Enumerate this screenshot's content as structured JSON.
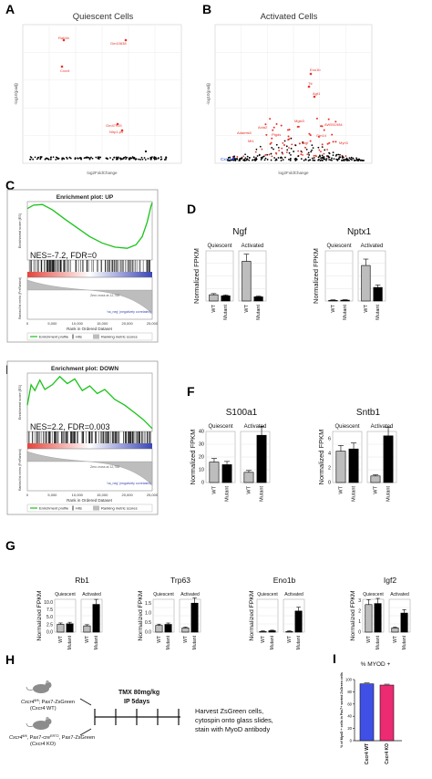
{
  "panel_letters": [
    "A",
    "B",
    "C",
    "D",
    "E",
    "F",
    "G",
    "H",
    "I"
  ],
  "colors": {
    "red": "#e8332a",
    "blue": "#1f4fd8",
    "green": "#19c319",
    "wt_fill": "#bdbdbd",
    "mut_fill": "#000000",
    "gsea_red": "#e3443b",
    "gsea_blue": "#3a46b5",
    "bar_blue": "#4050e6",
    "bar_pink": "#ec2b73"
  },
  "common": {
    "quiescent": "Quiescent",
    "activated": "Activated",
    "wt": "WT",
    "mutant": "Mutant",
    "ylabel": "Normalized FPKM",
    "legend_profile": "Enrichment profile",
    "legend_hits": "Hits",
    "legend_ranking": "Ranking metric scores",
    "es_label": "Enrichment score (ES)",
    "rank_label": "Rank in Ordered Dataset",
    "rlm_label": "Ranked list metric (PreRanked)",
    "pos_label": "'na_pos' (positively correlated)",
    "neg_label": "'na_neg' (negatively correlated)",
    "zero_label": "Zero cross at 12,755",
    "x_ticks": [
      "0",
      "5,000",
      "10,000",
      "15,000",
      "20,000",
      "25,000"
    ]
  },
  "panelA": {
    "title": "Quiescent Cells",
    "xlabel": "log2FoldChange",
    "ylabel": "-log10(padj)"
  },
  "panelB": {
    "title": "Activated Cells",
    "xlabel": "log2FoldChange",
    "ylabel": "-log10(padj)"
  },
  "panelC": {
    "title": "Enrichment plot: UP",
    "stats": "NES=-7.2, FDR=0"
  },
  "panelE": {
    "title": "Enrichment plot: DOWN",
    "stats": "NES=2.2, FDR=0.003"
  },
  "chart_data": [
    {
      "type": "bar",
      "title": "Ngf",
      "categories": [
        "Quiescent WT",
        "Quiescent Mutant",
        "Activated WT",
        "Activated Mutant"
      ],
      "values": [
        3,
        2.5,
        19,
        2
      ],
      "ticks": []
    },
    {
      "type": "bar",
      "title": "Nptx1",
      "categories": [
        "Quiescent WT",
        "Quiescent Mutant",
        "Activated WT",
        "Activated Mutant"
      ],
      "values": [
        0.3,
        0.4,
        17,
        6.5
      ],
      "ticks": []
    },
    {
      "type": "bar",
      "title": "S100a1",
      "categories": [
        "Quiescent WT",
        "Quiescent Mutant",
        "Activated WT",
        "Activated Mutant"
      ],
      "values": [
        16,
        14,
        8,
        37
      ],
      "ticks": [
        "0",
        "10",
        "20",
        "30",
        "40"
      ],
      "ylim": [
        0,
        40
      ]
    },
    {
      "type": "bar",
      "title": "Sntb1",
      "categories": [
        "Quiescent WT",
        "Quiescent Mutant",
        "Activated WT",
        "Activated Mutant"
      ],
      "values": [
        4.3,
        4.6,
        0.9,
        6.4
      ],
      "ticks": [
        "0",
        "2",
        "4",
        "6"
      ],
      "ylim": [
        0,
        7
      ]
    },
    {
      "type": "bar",
      "title": "Rb1",
      "categories": [
        "Quiescent WT",
        "Quiescent Mutant",
        "Activated WT",
        "Activated Mutant"
      ],
      "values": [
        2.6,
        2.8,
        2.1,
        9.3
      ],
      "ticks": [
        "0.0",
        "2.5",
        "5.0",
        "7.5",
        "10.0"
      ],
      "ylim": [
        0,
        11
      ]
    },
    {
      "type": "bar",
      "title": "Trp63",
      "categories": [
        "Quiescent WT",
        "Quiescent Mutant",
        "Activated WT",
        "Activated Mutant"
      ],
      "values": [
        0.35,
        0.4,
        0.22,
        1.5
      ],
      "ticks": [
        "0.0",
        "0.5",
        "1.0",
        "1.5"
      ],
      "ylim": [
        0,
        1.7
      ]
    },
    {
      "type": "bar",
      "title": "Eno1b",
      "categories": [
        "Quiescent WT",
        "Quiescent Mutant",
        "Activated WT",
        "Activated Mutant"
      ],
      "values": [
        0.3,
        0.6,
        0.3,
        9
      ],
      "ticks": [],
      "ylim": [
        0,
        14
      ]
    },
    {
      "type": "bar",
      "title": "Igf2",
      "categories": [
        "Quiescent WT",
        "Quiescent Mutant",
        "Activated WT",
        "Activated Mutant"
      ],
      "values": [
        2.6,
        2.7,
        0.4,
        1.8
      ],
      "ticks": [
        "0",
        "1",
        "2",
        "3"
      ],
      "ylim": [
        0,
        3.1
      ]
    },
    {
      "type": "bar",
      "title": "% MYOD +",
      "categories": [
        "Cxcr4 WT",
        "Cxcr4 KO"
      ],
      "values": [
        93,
        91
      ],
      "ticks": [
        "0",
        "20",
        "40",
        "60",
        "80",
        "100"
      ],
      "ylim": [
        0,
        100
      ],
      "ylabel": "% of MyoD + cells in Pax7+ sorted ZsGreen cells"
    }
  ],
  "panelH": {
    "label_top_1": "Cxcr4",
    "label_top_2": "fl/fl",
    "label_top_3": "; Pax7-ZsGreen",
    "label_top_4": "(Cxcr4 WT)",
    "label_bot_1": "Cxcr4",
    "label_bot_2": "fl/fl",
    "label_bot_3": ", Pax7-cre",
    "label_bot_4": "ERT2",
    "label_bot_5": ", Pax7-ZsGreen",
    "label_bot_6": "(Cxcr4 KO)",
    "tmx_line1": "TMX 80mg/kg",
    "tmx_line2": "IP 5days",
    "harvest_1": "Harvest ZsGreen cells,",
    "harvest_2": "cytospin onto glass slides,",
    "harvest_3": "stain with MyoD antibody"
  }
}
